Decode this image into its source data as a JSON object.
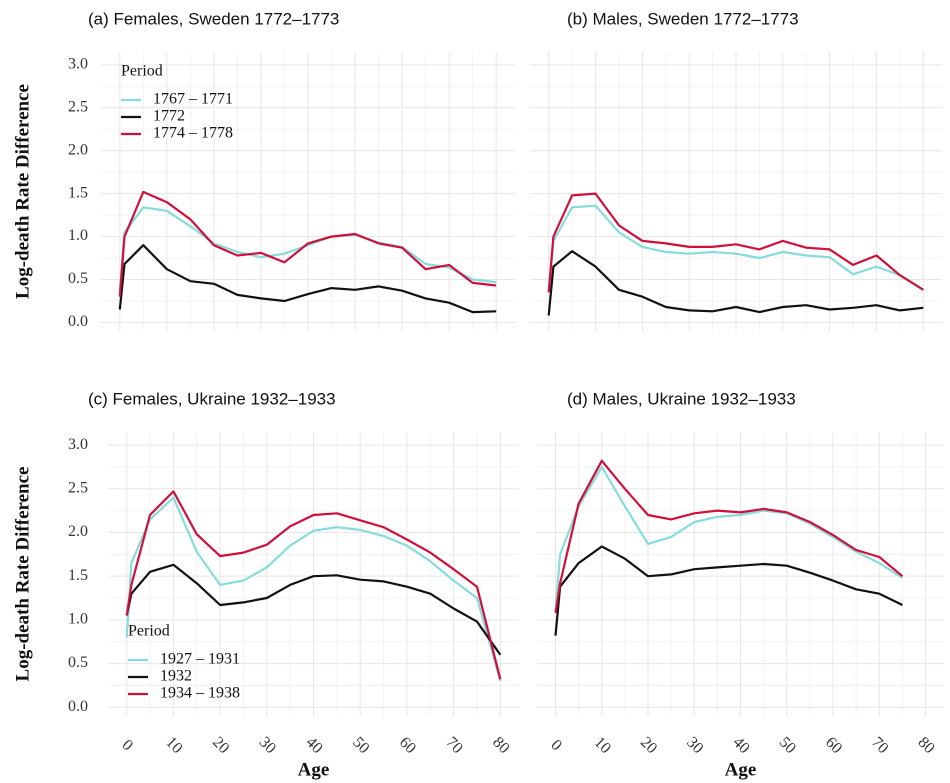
{
  "chart_data": [
    {
      "type": "line",
      "title": "(a) Females, Sweden 1772–1773",
      "ylabel": "Log-death Rate Difference",
      "legend_title": "Period",
      "legend": "upper left",
      "grid": true,
      "x": [
        0,
        1,
        5,
        10,
        15,
        20,
        25,
        30,
        35,
        40,
        45,
        50,
        55,
        60,
        65,
        70,
        75,
        80
      ],
      "xlim": [
        -4,
        84
      ],
      "xticks": [
        0,
        10,
        20,
        30,
        40,
        50,
        60,
        70,
        80
      ],
      "ylim": [
        -0.1,
        3.15
      ],
      "yticks": [
        {
          "value": 0,
          "label": "0.0"
        },
        {
          "value": 0.5,
          "label": "0.5"
        },
        {
          "value": 1,
          "label": "1.0"
        },
        {
          "value": 1.5,
          "label": "1.5"
        },
        {
          "value": 2,
          "label": "2.0"
        },
        {
          "value": 2.5,
          "label": "2.5"
        },
        {
          "value": 3,
          "label": "3.0"
        }
      ],
      "series": [
        {
          "name": "1767 – 1771",
          "color": "#86dcdc",
          "values": [
            0.37,
            1.05,
            1.34,
            1.3,
            1.12,
            0.92,
            0.82,
            0.76,
            0.8,
            0.9,
            1.0,
            1.02,
            0.93,
            0.88,
            0.68,
            0.64,
            0.5,
            0.47
          ]
        },
        {
          "name": "1772",
          "color": "#111111",
          "values": [
            0.15,
            0.68,
            0.9,
            0.62,
            0.48,
            0.45,
            0.32,
            0.28,
            0.25,
            0.33,
            0.4,
            0.38,
            0.42,
            0.37,
            0.28,
            0.23,
            0.12,
            0.13
          ]
        },
        {
          "name": "1774 – 1778",
          "color": "#d0103a",
          "values": [
            0.3,
            1.0,
            1.52,
            1.4,
            1.2,
            0.9,
            0.78,
            0.81,
            0.7,
            0.92,
            1.0,
            1.03,
            0.92,
            0.87,
            0.62,
            0.67,
            0.46,
            0.43
          ]
        }
      ]
    },
    {
      "type": "line",
      "title": "(b) Males, Sweden 1772–1773",
      "grid": true,
      "x": [
        0,
        1,
        5,
        10,
        15,
        20,
        25,
        30,
        35,
        40,
        45,
        50,
        55,
        60,
        65,
        70,
        75,
        80
      ],
      "xlim": [
        -4,
        84
      ],
      "xticks": [
        0,
        10,
        20,
        30,
        40,
        50,
        60,
        70,
        80
      ],
      "ylim": [
        -0.1,
        3.15
      ],
      "yticks": [
        0,
        0.5,
        1,
        1.5,
        2,
        2.5,
        3
      ],
      "series": [
        {
          "name": "1767 – 1771",
          "color": "#86dcdc",
          "values": [
            0.35,
            0.95,
            1.34,
            1.36,
            1.05,
            0.88,
            0.82,
            0.8,
            0.82,
            0.8,
            0.75,
            0.82,
            0.78,
            0.76,
            0.56,
            0.65,
            0.55,
            0.38
          ]
        },
        {
          "name": "1772",
          "color": "#111111",
          "values": [
            0.08,
            0.65,
            0.83,
            0.65,
            0.38,
            0.3,
            0.18,
            0.14,
            0.13,
            0.18,
            0.12,
            0.18,
            0.2,
            0.15,
            0.17,
            0.2,
            0.14,
            0.17
          ]
        },
        {
          "name": "1774 – 1778",
          "color": "#d0103a",
          "values": [
            0.35,
            1.0,
            1.48,
            1.5,
            1.13,
            0.95,
            0.92,
            0.88,
            0.88,
            0.91,
            0.85,
            0.95,
            0.87,
            0.85,
            0.67,
            0.78,
            0.55,
            0.38
          ]
        }
      ]
    },
    {
      "type": "line",
      "title": "(c) Females, Ukraine 1932–1933",
      "ylabel": "Log-death Rate Difference",
      "xlabel": "Age",
      "legend_title": "Period",
      "legend": "lower left",
      "grid": true,
      "x": [
        0,
        1,
        5,
        10,
        15,
        20,
        25,
        30,
        35,
        40,
        45,
        50,
        55,
        60,
        65,
        70,
        75,
        80
      ],
      "xlim": [
        -4,
        84
      ],
      "xticks": [
        0,
        10,
        20,
        30,
        40,
        50,
        60,
        70,
        80
      ],
      "ylim": [
        -0.1,
        3.15
      ],
      "yticks": [
        {
          "value": 0,
          "label": "0.0"
        },
        {
          "value": 0.5,
          "label": "0.5"
        },
        {
          "value": 1,
          "label": "1.0"
        },
        {
          "value": 1.5,
          "label": "1.5"
        },
        {
          "value": 2,
          "label": "2.0"
        },
        {
          "value": 2.5,
          "label": "2.5"
        },
        {
          "value": 3,
          "label": "3.0"
        }
      ],
      "series": [
        {
          "name": "1927 – 1931",
          "color": "#86dcdc",
          "values": [
            0.8,
            1.65,
            2.15,
            2.4,
            1.78,
            1.4,
            1.45,
            1.6,
            1.85,
            2.02,
            2.06,
            2.03,
            1.96,
            1.85,
            1.67,
            1.45,
            1.25,
            0.3
          ]
        },
        {
          "name": "1932",
          "color": "#111111",
          "values": [
            1.05,
            1.3,
            1.55,
            1.63,
            1.42,
            1.17,
            1.2,
            1.25,
            1.4,
            1.5,
            1.51,
            1.46,
            1.44,
            1.38,
            1.3,
            1.13,
            0.98,
            0.6
          ]
        },
        {
          "name": "1934 – 1938",
          "color": "#d0103a",
          "values": [
            1.05,
            1.4,
            2.2,
            2.47,
            1.98,
            1.73,
            1.77,
            1.86,
            2.07,
            2.2,
            2.22,
            2.14,
            2.06,
            1.92,
            1.77,
            1.58,
            1.38,
            0.32
          ]
        }
      ]
    },
    {
      "type": "line",
      "title": "(d) Males, Ukraine 1932–1933",
      "xlabel": "Age",
      "grid": true,
      "x": [
        0,
        1,
        5,
        10,
        15,
        20,
        25,
        30,
        35,
        40,
        45,
        50,
        55,
        60,
        65,
        70,
        75
      ],
      "xlim": [
        -4,
        84
      ],
      "xticks": [
        0,
        10,
        20,
        30,
        40,
        50,
        60,
        70,
        80
      ],
      "ylim": [
        -0.1,
        3.15
      ],
      "yticks": [
        0,
        0.5,
        1,
        1.5,
        2,
        2.5,
        3
      ],
      "series": [
        {
          "name": "1927 – 1931",
          "color": "#86dcdc",
          "values": [
            1.1,
            1.75,
            2.3,
            2.75,
            2.3,
            1.87,
            1.95,
            2.12,
            2.18,
            2.2,
            2.25,
            2.22,
            2.1,
            1.95,
            1.78,
            1.65,
            1.48
          ]
        },
        {
          "name": "1932",
          "color": "#111111",
          "values": [
            0.82,
            1.38,
            1.65,
            1.84,
            1.7,
            1.5,
            1.52,
            1.58,
            1.6,
            1.62,
            1.64,
            1.62,
            1.54,
            1.45,
            1.35,
            1.3,
            1.17
          ]
        },
        {
          "name": "1934 – 1938",
          "color": "#d0103a",
          "values": [
            1.08,
            1.42,
            2.33,
            2.82,
            2.5,
            2.2,
            2.15,
            2.22,
            2.25,
            2.23,
            2.27,
            2.23,
            2.12,
            1.97,
            1.8,
            1.72,
            1.5
          ]
        }
      ]
    }
  ]
}
